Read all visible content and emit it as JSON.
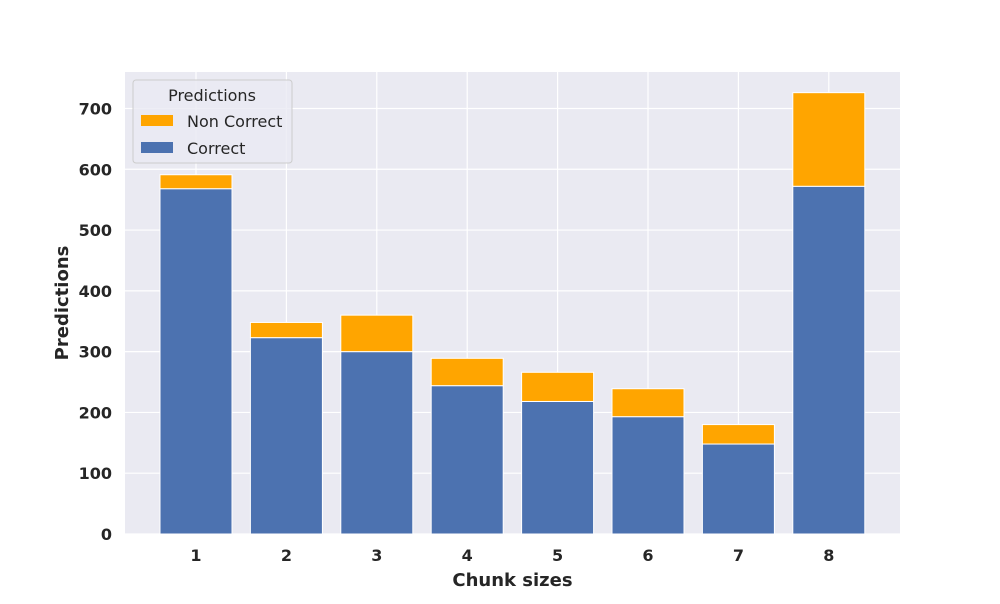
{
  "chart_data": {
    "type": "bar",
    "stacked": true,
    "categories": [
      "1",
      "2",
      "3",
      "4",
      "5",
      "6",
      "7",
      "8"
    ],
    "series": [
      {
        "name": "Correct",
        "color": "#4c72b0",
        "values": [
          568,
          323,
          300,
          244,
          218,
          193,
          148,
          572
        ]
      },
      {
        "name": "Non Correct",
        "color": "#ffa500",
        "values": [
          23,
          25,
          60,
          45,
          48,
          46,
          32,
          154
        ]
      }
    ],
    "totals": [
      591,
      348,
      360,
      289,
      266,
      239,
      180,
      726
    ],
    "title": "",
    "xlabel": "Chunk sizes",
    "ylabel": "Predictions",
    "ylim": [
      0,
      760
    ],
    "yticks": [
      0,
      100,
      200,
      300,
      400,
      500,
      600,
      700
    ],
    "grid": true,
    "legend": {
      "title": "Predictions",
      "position": "top-left",
      "order": [
        "Non Correct",
        "Correct"
      ]
    },
    "background": "#eaeaf2"
  }
}
